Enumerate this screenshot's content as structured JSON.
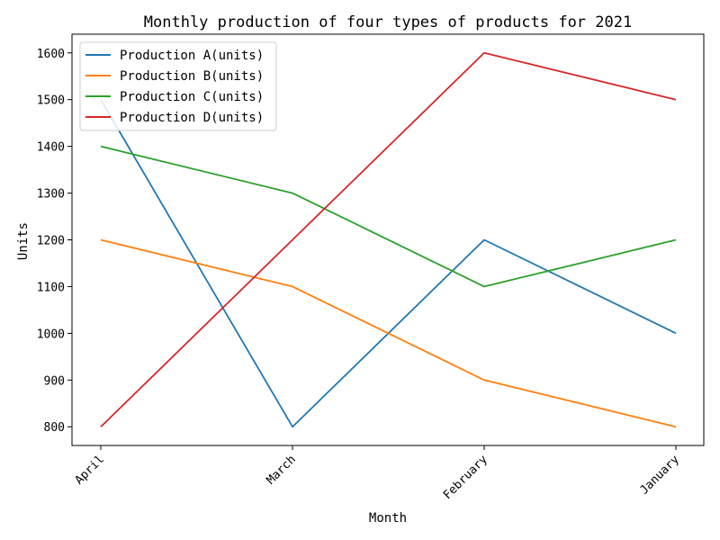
{
  "chart_data": {
    "type": "line",
    "title": "Monthly production of four types of products for 2021",
    "xlabel": "Month",
    "ylabel": "Units",
    "categories": [
      "April",
      "March",
      "February",
      "January"
    ],
    "ylim": [
      760,
      1640
    ],
    "yticks": [
      800,
      900,
      1000,
      1100,
      1200,
      1300,
      1400,
      1500,
      1600
    ],
    "grid": false,
    "legend_position": "top-left",
    "series": [
      {
        "name": "Production A(units)",
        "color": "#1f77b4",
        "values": [
          1500,
          800,
          1200,
          1000
        ]
      },
      {
        "name": "Production B(units)",
        "color": "#ff7f0e",
        "values": [
          1200,
          1100,
          900,
          800
        ]
      },
      {
        "name": "Production C(units)",
        "color": "#2ca02c",
        "values": [
          1400,
          1300,
          1100,
          1200
        ]
      },
      {
        "name": "Production D(units)",
        "color": "#d62728",
        "values": [
          800,
          1200,
          1600,
          1500
        ]
      }
    ]
  }
}
